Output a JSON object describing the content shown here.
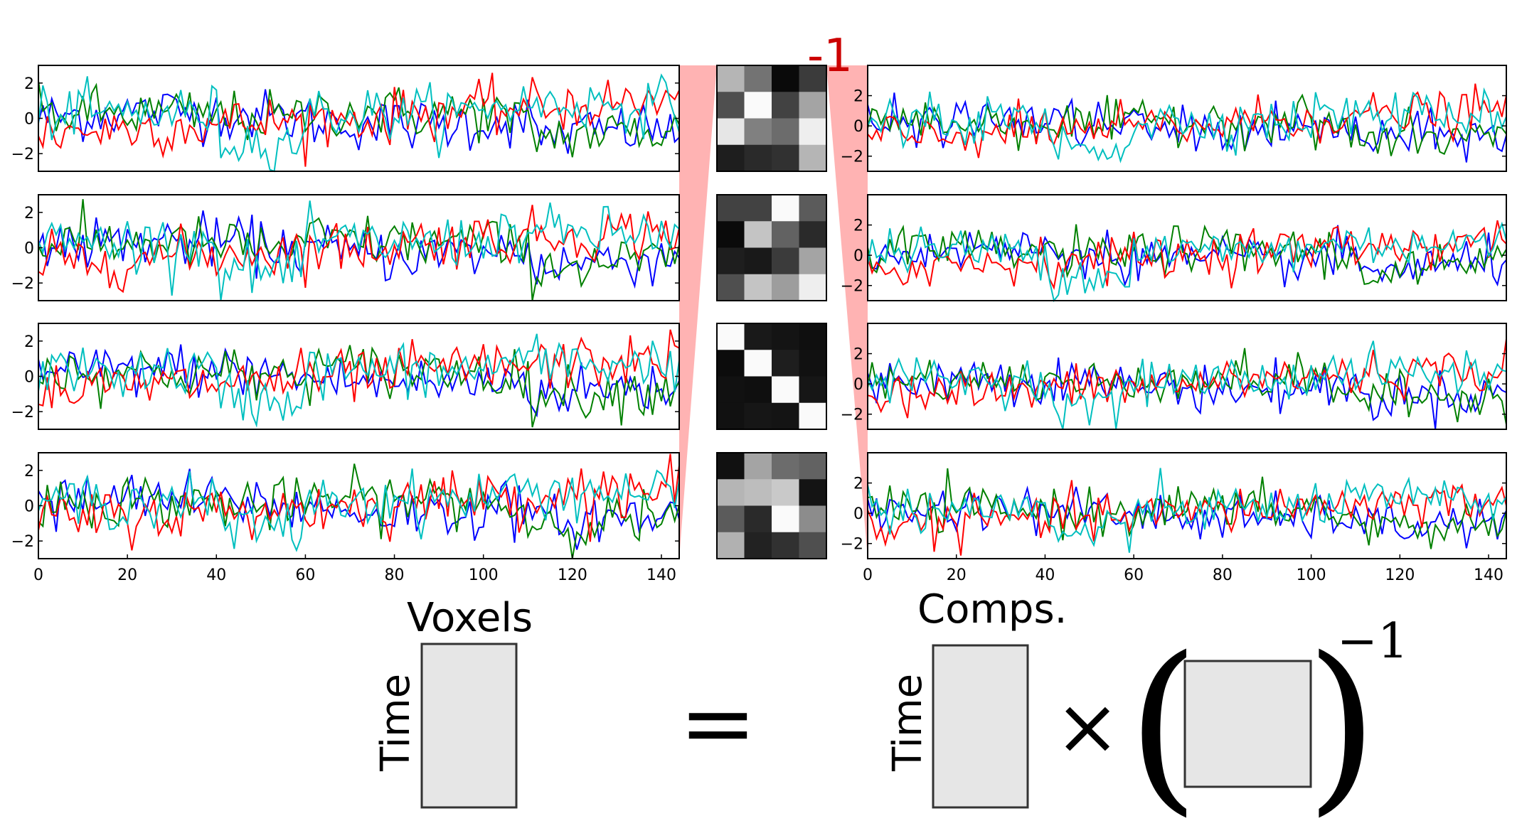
{
  "superscript_red": "-1",
  "panel_y_ticks_left": [
    "2",
    "0",
    "−2"
  ],
  "panel_y_ticks_right": [
    "2",
    "0",
    "−2"
  ],
  "x_ticks": [
    "0",
    "20",
    "40",
    "60",
    "80",
    "100",
    "120",
    "140"
  ],
  "chart_data": {
    "type": "line",
    "x_range": [
      0,
      144
    ],
    "left_ylim": [
      -3,
      3
    ],
    "right_ylim": [
      -3,
      4
    ],
    "series_colors": [
      "#0000ff",
      "#008000",
      "#ff0000",
      "#00bfbf"
    ],
    "panels_left": 4,
    "panels_right": 4
  },
  "matrices": [
    [
      [
        0.72,
        0.45,
        0.02,
        0.22
      ],
      [
        0.3,
        1.0,
        0.25,
        0.65
      ],
      [
        0.92,
        0.5,
        0.42,
        0.95
      ],
      [
        0.1,
        0.15,
        0.18,
        0.72
      ]
    ],
    [
      [
        0.25,
        0.25,
        1.0,
        0.35
      ],
      [
        0.02,
        0.78,
        0.38,
        0.15
      ],
      [
        0.1,
        0.08,
        0.22,
        0.65
      ],
      [
        0.3,
        0.78,
        0.62,
        0.95
      ]
    ],
    [
      [
        1.0,
        0.08,
        0.06,
        0.04
      ],
      [
        0.03,
        1.0,
        0.1,
        0.05
      ],
      [
        0.05,
        0.04,
        1.0,
        0.07
      ],
      [
        0.05,
        0.07,
        0.06,
        1.0
      ]
    ],
    [
      [
        0.05,
        0.65,
        0.42,
        0.38
      ],
      [
        0.72,
        0.75,
        0.8,
        0.06
      ],
      [
        0.35,
        0.15,
        1.0,
        0.55
      ],
      [
        0.7,
        0.12,
        0.18,
        0.3
      ]
    ]
  ],
  "equation": {
    "left_col_label": "Voxels",
    "left_row_label": "Time",
    "equals": "=",
    "right_col_label": "Comps.",
    "right_row_label": "Time",
    "times": "×",
    "paren_open": "(",
    "paren_close": ")",
    "exponent": "−1"
  }
}
